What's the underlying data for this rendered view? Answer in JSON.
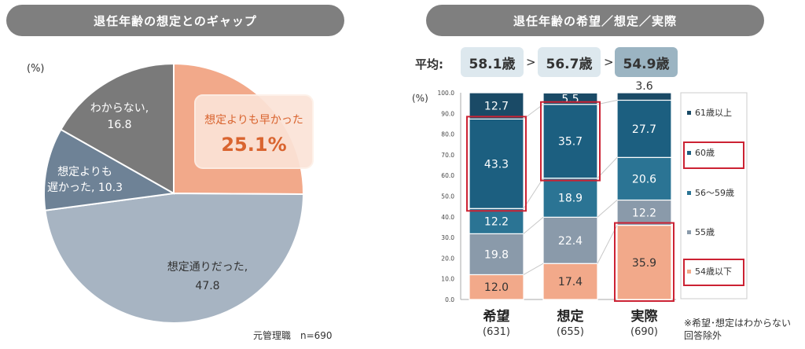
{
  "pie_panel": {
    "title": "退任年齢の想定とのギャップ",
    "unit": "(%)",
    "callout_label": "想定よりも早かった",
    "callout_value": "25.1%",
    "sample_note": "元管理職　n=690"
  },
  "bar_panel": {
    "title": "退任年齢の希望／想定／実際",
    "avg_label": "平均:",
    "averages": [
      "58.1歳",
      "56.7歳",
      "54.9歳"
    ],
    "avg_separator": ">",
    "unit": "(%)",
    "footnote_line1": "※希望･想定はわからない",
    "footnote_line2": "回答除外"
  },
  "colors": {
    "pie_early": "#f2a98a",
    "pie_asplanned": "#a7b4c2",
    "pie_late": "#6e8296",
    "pie_unknown": "#7a7a7a",
    "bar_61plus": "#1a4a66",
    "bar_60": "#1c5f80",
    "bar_56_59": "#2b7494",
    "bar_55": "#8a9aaa",
    "bar_54minus": "#f2a98a",
    "highlight": "#cc2233"
  },
  "chart_data": [
    {
      "type": "pie",
      "slices": [
        {
          "name": "想定よりも早かった",
          "value": 25.1
        },
        {
          "name": "想定通りだった",
          "value": 47.8
        },
        {
          "name": "想定よりも遅かった",
          "value": 10.3
        },
        {
          "name": "わからない",
          "value": 16.8
        }
      ],
      "slice_labels": [
        [
          "想定よりも早かった",
          "25.1%"
        ],
        [
          "想定通りだった,",
          "47.8"
        ],
        [
          "想定よりも",
          "遅かった, 10.3"
        ],
        [
          "わからない,",
          "16.8"
        ]
      ]
    },
    {
      "type": "bar",
      "stacked": true,
      "categories": [
        "希望",
        "想定",
        "実際"
      ],
      "category_counts": [
        "(631)",
        "(655)",
        "(690)"
      ],
      "ylim": [
        0,
        100
      ],
      "yticks": [
        "0.0",
        "10.0",
        "20.0",
        "30.0",
        "40.0",
        "50.0",
        "60.0",
        "70.0",
        "80.0",
        "90.0",
        "100.0"
      ],
      "series": [
        {
          "name": "54歳以下",
          "values": [
            12.0,
            17.4,
            35.9
          ]
        },
        {
          "name": "55歳",
          "values": [
            19.8,
            22.4,
            12.2
          ]
        },
        {
          "name": "56～59歳",
          "values": [
            12.2,
            18.9,
            20.6
          ]
        },
        {
          "name": "60歳",
          "values": [
            43.3,
            35.7,
            27.7
          ]
        },
        {
          "name": "61歳以上",
          "values": [
            12.7,
            5.5,
            3.6
          ]
        }
      ],
      "value_labels": [
        [
          "12.0",
          "17.4",
          "35.9"
        ],
        [
          "19.8",
          "22.4",
          "12.2"
        ],
        [
          "12.2",
          "18.9",
          "20.6"
        ],
        [
          "43.3",
          "35.7",
          "27.7"
        ],
        [
          "12.7",
          "5.5",
          "3.6"
        ]
      ],
      "legend": [
        "61歳以上",
        "60歳",
        "56～59歳",
        "55歳",
        "54歳以下"
      ]
    }
  ]
}
